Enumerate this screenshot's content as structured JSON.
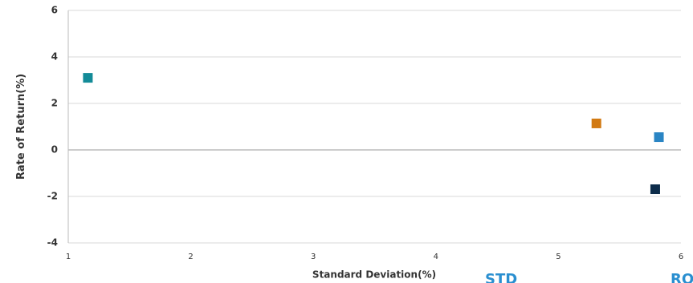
{
  "chart_data": {
    "type": "scatter",
    "x_label": "Standard Deviation(%)",
    "y_label": "Rate of Return(%)",
    "x": [
      1.16,
      5.31,
      5.82,
      5.79
    ],
    "values": [
      3.1,
      1.14,
      0.55,
      -1.69
    ],
    "colors": [
      "#138b98",
      "#d27a12",
      "#2a85c4",
      "#0d2c4a"
    ],
    "xlim": [
      1,
      6
    ],
    "xticks": [
      1,
      2,
      3,
      4,
      5,
      6
    ],
    "ylim": [
      -4,
      6
    ],
    "yticks": [
      -4,
      -2,
      0,
      2,
      4,
      6
    ],
    "grid": true,
    "annotations": [
      "STD",
      "RO"
    ]
  }
}
